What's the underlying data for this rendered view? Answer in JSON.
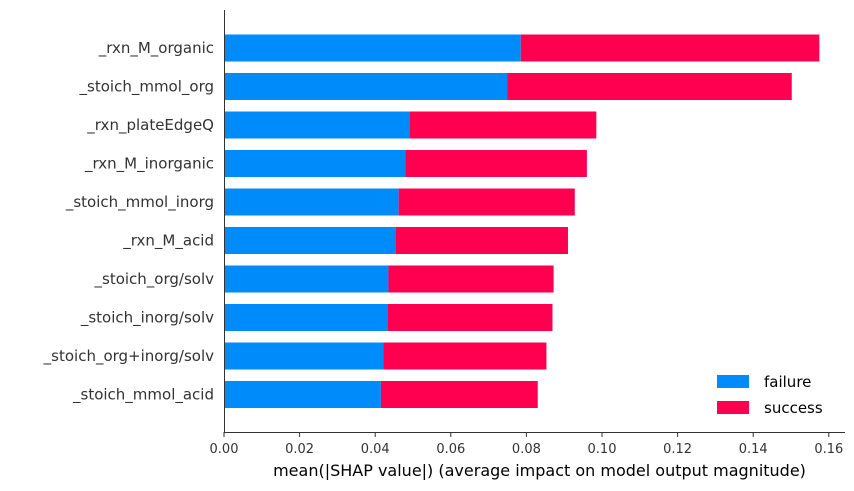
{
  "chart_data": {
    "type": "bar",
    "orientation": "horizontal",
    "stacked": true,
    "categories": [
      "_rxn_M_organic",
      "_stoich_mmol_org",
      "_rxn_plateEdgeQ",
      "_rxn_M_inorganic",
      "_stoich_mmol_inorg",
      "_rxn_M_acid",
      "_stoich_org/solv",
      "_stoich_inorg/solv",
      "_stoich_org+inorg/solv",
      "_stoich_mmol_acid"
    ],
    "series": [
      {
        "name": "failure",
        "color": "#008bfb",
        "values": [
          0.0785,
          0.075,
          0.049,
          0.048,
          0.0462,
          0.0455,
          0.0435,
          0.0432,
          0.0422,
          0.0415
        ]
      },
      {
        "name": "success",
        "color": "#ff0051",
        "values": [
          0.079,
          0.0752,
          0.0495,
          0.048,
          0.0466,
          0.0455,
          0.0437,
          0.0437,
          0.0431,
          0.0415
        ]
      }
    ],
    "xlabel": "mean(|SHAP value|) (average impact on model output magnitude)",
    "ylabel": "",
    "xlim": [
      0,
      0.165
    ],
    "xticks": [
      "0.00",
      "0.02",
      "0.04",
      "0.06",
      "0.08",
      "0.10",
      "0.12",
      "0.14",
      "0.16"
    ],
    "xtick_values": [
      0,
      0.02,
      0.04,
      0.06,
      0.08,
      0.1,
      0.12,
      0.14,
      0.16
    ],
    "legend_position": "bottom-right",
    "grid": false
  }
}
